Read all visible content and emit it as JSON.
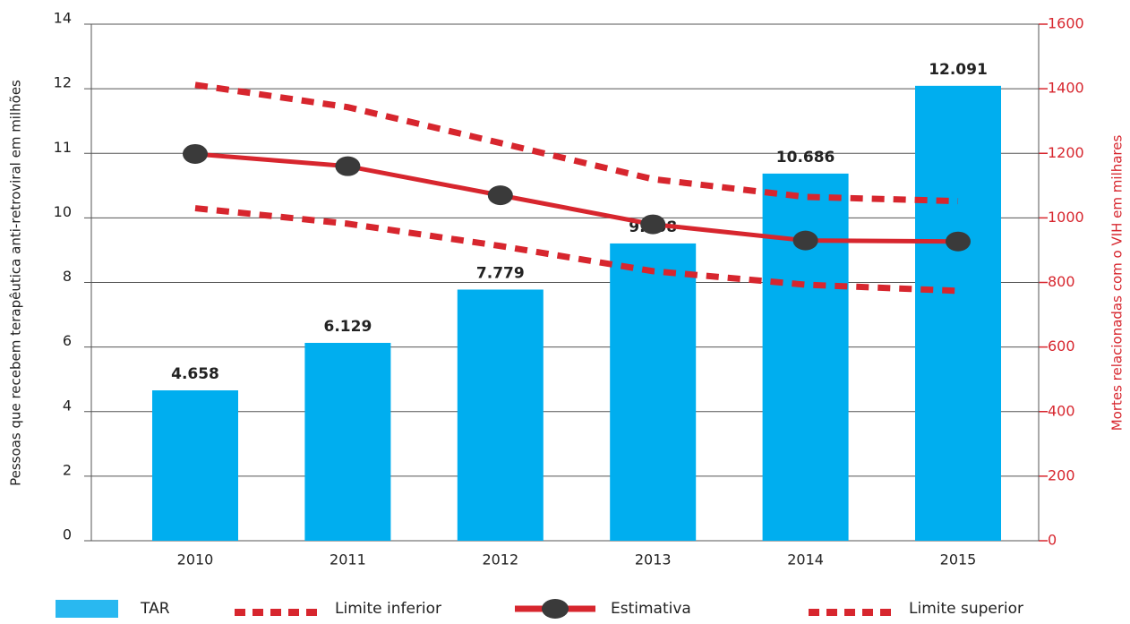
{
  "chart_data": {
    "type": "bar-line",
    "y_label": "Pessoas  que recebem terapêutica anti-retroviral em milhões",
    "y2_label": "Mortes relacionadas com o VIH em milhares",
    "categories": [
      "2010",
      "2011",
      "2012",
      "2013",
      "2014",
      "2015"
    ],
    "series": [
      {
        "name": "TAR",
        "type": "bar",
        "color": "#00aeef",
        "values": [
          4.658,
          6.129,
          7.779,
          9.208,
          10.686,
          12.091
        ],
        "value_labels": [
          "4.658",
          "6.129",
          "7.779",
          "9.208",
          "10.686",
          "12.091"
        ]
      },
      {
        "name": "Limite inferior",
        "type": "dashed",
        "axis": "y2",
        "color": "#d7262e",
        "values": [
          1030,
          982,
          913,
          835,
          793,
          774
        ]
      },
      {
        "name": "Estimativa",
        "type": "line",
        "axis": "y2",
        "color": "#d7262e",
        "values": [
          1198,
          1160,
          1070,
          980,
          930,
          927
        ]
      },
      {
        "name": "Limite superior",
        "type": "dashed",
        "axis": "y2",
        "color": "#d7262e",
        "values": [
          1412,
          1343,
          1232,
          1120,
          1065,
          1052
        ]
      }
    ],
    "ylim": [
      0,
      14
    ],
    "yticks": [
      0,
      2,
      4,
      6,
      8,
      10,
      11,
      12,
      14
    ],
    "y2lim": [
      0,
      1600
    ],
    "y2ticks": [
      0,
      200,
      400,
      600,
      800,
      1000,
      1200,
      1400,
      1600
    ],
    "grid": true
  }
}
